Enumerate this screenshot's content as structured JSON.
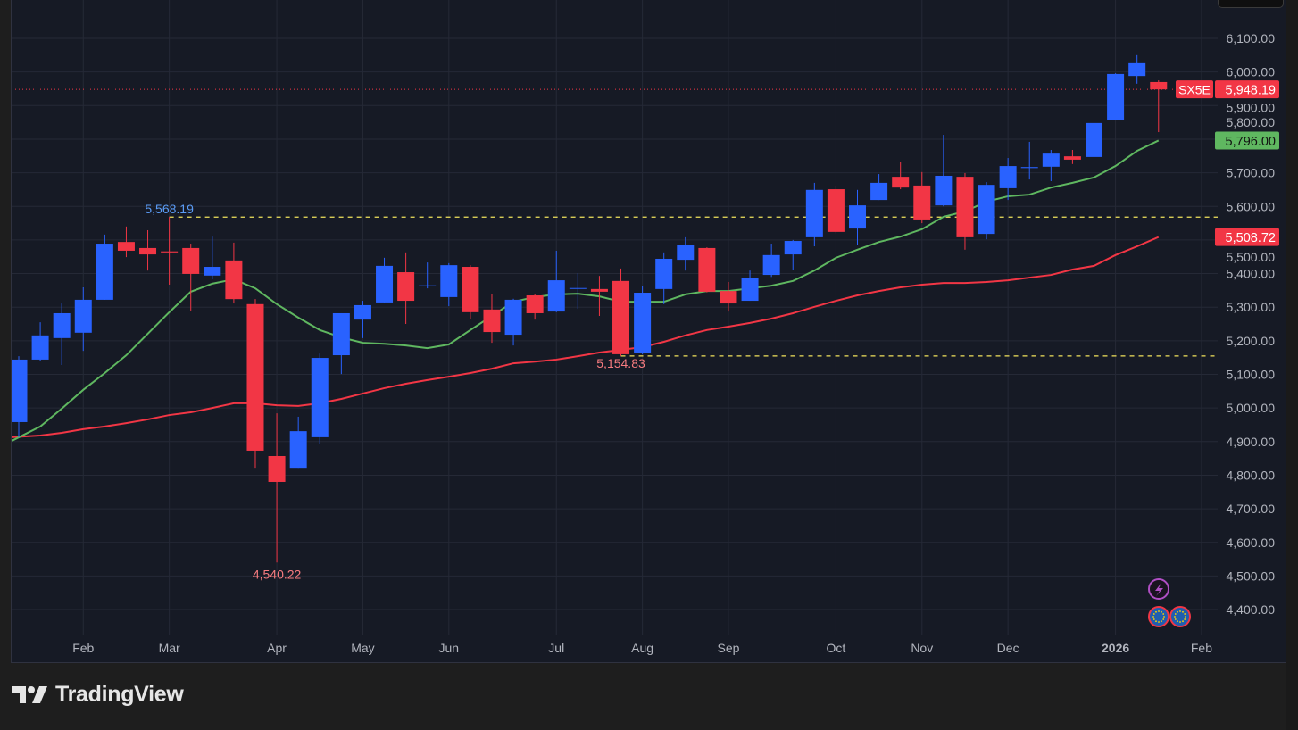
{
  "brand": {
    "name": "TradingView"
  },
  "symbol": "SX5E",
  "colors": {
    "up": "#2962ff",
    "down": "#f23645",
    "ma_fast": "#5fb760",
    "ma_slow": "#f23645",
    "level_line": "#f2e35c",
    "bg": "#161a25",
    "grid": "#252936"
  },
  "icons": [
    "lightning-event-icon",
    "eu-flag-event-icon",
    "eu-flag-event-icon"
  ],
  "chart_data": {
    "type": "candlestick",
    "interval": "weekly",
    "ylim": [
      4300,
      6150
    ],
    "y_ticks": [
      "4,400.00",
      "4,500.00",
      "4,600.00",
      "4,700.00",
      "4,800.00",
      "4,900.00",
      "5,000.00",
      "5,100.00",
      "5,200.00",
      "5,300.00",
      "5,400.00",
      "5,500.00",
      "5,600.00",
      "5,700.00",
      "5,800.00",
      "5,900.00",
      "6,000.00",
      "6,100.00"
    ],
    "y_tick_values": [
      4400,
      4500,
      4600,
      4700,
      4800,
      4900,
      5000,
      5100,
      5200,
      5300,
      5400,
      5500,
      5600,
      5700,
      5800,
      5900,
      6000,
      6100
    ],
    "x_ticks": [
      {
        "label": "Feb",
        "index": 3
      },
      {
        "label": "Mar",
        "index": 7
      },
      {
        "label": "Apr",
        "index": 12
      },
      {
        "label": "May",
        "index": 16
      },
      {
        "label": "Jun",
        "index": 20
      },
      {
        "label": "Jul",
        "index": 25
      },
      {
        "label": "Aug",
        "index": 29
      },
      {
        "label": "Sep",
        "index": 33
      },
      {
        "label": "Oct",
        "index": 38
      },
      {
        "label": "Nov",
        "index": 42
      },
      {
        "label": "Dec",
        "index": 46
      },
      {
        "label": "2026",
        "index": 51,
        "bold": true
      },
      {
        "label": "Feb",
        "index": 55
      }
    ],
    "ohlc": [
      [
        4958,
        5154,
        4913,
        5144
      ],
      [
        5144,
        5255,
        5139,
        5216
      ],
      [
        5208,
        5311,
        5128,
        5282
      ],
      [
        5224,
        5359,
        5170,
        5322
      ],
      [
        5322,
        5516,
        5322,
        5489
      ],
      [
        5494,
        5540,
        5449,
        5468
      ],
      [
        5476,
        5529,
        5409,
        5457
      ],
      [
        5466,
        5568.19,
        5367,
        5463
      ],
      [
        5476,
        5489,
        5290,
        5399
      ],
      [
        5394,
        5510,
        5383,
        5420
      ],
      [
        5439,
        5492,
        5311,
        5324
      ],
      [
        5309,
        5324,
        4822,
        4873
      ],
      [
        4857,
        4984,
        4540.22,
        4780
      ],
      [
        4822,
        4974,
        4822,
        4931
      ],
      [
        4913,
        5162,
        4892,
        5149
      ],
      [
        5157,
        5282,
        5101,
        5282
      ],
      [
        5263,
        5319,
        5208,
        5306
      ],
      [
        5314,
        5447,
        5314,
        5423
      ],
      [
        5404,
        5463,
        5250,
        5319
      ],
      [
        5362,
        5433,
        5356,
        5365
      ],
      [
        5330,
        5431,
        5303,
        5425
      ],
      [
        5420,
        5425,
        5266,
        5285
      ],
      [
        5293,
        5340,
        5194,
        5226
      ],
      [
        5218,
        5325,
        5186,
        5322
      ],
      [
        5335,
        5340,
        5263,
        5282
      ],
      [
        5287,
        5468,
        5285,
        5380
      ],
      [
        5355,
        5401,
        5295,
        5357
      ],
      [
        5354,
        5393,
        5274,
        5346
      ],
      [
        5378,
        5415,
        5154.83,
        5160
      ],
      [
        5165,
        5364,
        5160,
        5343
      ],
      [
        5354,
        5463,
        5309,
        5444
      ],
      [
        5441,
        5508,
        5409,
        5484
      ],
      [
        5476,
        5478,
        5344,
        5346
      ],
      [
        5348,
        5375,
        5287,
        5311
      ],
      [
        5319,
        5409,
        5319,
        5388
      ],
      [
        5396,
        5489,
        5390,
        5455
      ],
      [
        5457,
        5500,
        5412,
        5497
      ],
      [
        5508,
        5670,
        5481,
        5649
      ],
      [
        5651,
        5662,
        5520,
        5524
      ],
      [
        5534,
        5649,
        5484,
        5603
      ],
      [
        5619,
        5696,
        5619,
        5670
      ],
      [
        5688,
        5731,
        5651,
        5656
      ],
      [
        5662,
        5702,
        5550,
        5561
      ],
      [
        5603,
        5813,
        5600,
        5691
      ],
      [
        5688,
        5699,
        5471,
        5508
      ],
      [
        5518,
        5672,
        5502,
        5664
      ],
      [
        5654,
        5744,
        5619,
        5720
      ],
      [
        5714,
        5792,
        5680,
        5717
      ],
      [
        5718,
        5768,
        5675,
        5757
      ],
      [
        5749,
        5768,
        5726,
        5739
      ],
      [
        5747,
        5861,
        5731,
        5848
      ],
      [
        5856,
        5996,
        5856,
        5994
      ],
      [
        5988,
        6050,
        5965,
        6026
      ],
      [
        5970,
        5975,
        5821,
        5948.19
      ]
    ],
    "ma_fast": [
      4902,
      4945,
      4998,
      5054,
      5104,
      5157,
      5221,
      5285,
      5346,
      5370,
      5383,
      5356,
      5309,
      5269,
      5232,
      5210,
      5194,
      5191,
      5186,
      5178,
      5189,
      5232,
      5274,
      5316,
      5330,
      5338,
      5340,
      5332,
      5316,
      5316,
      5316,
      5338,
      5348,
      5348,
      5356,
      5364,
      5378,
      5409,
      5447,
      5471,
      5494,
      5510,
      5532,
      5569,
      5585,
      5614,
      5630,
      5635,
      5656,
      5670,
      5686,
      5720,
      5765,
      5796
    ],
    "ma_slow": [
      4913,
      4918,
      4926,
      4937,
      4945,
      4955,
      4966,
      4979,
      4987,
      5000,
      5014,
      5014,
      5008,
      5006,
      5014,
      5027,
      5043,
      5059,
      5072,
      5083,
      5093,
      5104,
      5117,
      5133,
      5138,
      5144,
      5154,
      5165,
      5173,
      5181,
      5197,
      5216,
      5232,
      5242,
      5253,
      5266,
      5282,
      5301,
      5319,
      5335,
      5348,
      5359,
      5367,
      5372,
      5372,
      5375,
      5380,
      5388,
      5396,
      5412,
      5423,
      5455,
      5481,
      5508.72
    ],
    "labels": {
      "last_price": "5,948.19",
      "last_price_value": 5948.19,
      "ma_fast_label": "5,796.00",
      "ma_slow_label": "5,508.72",
      "high_label": "5,568.19",
      "high_value": 5568.19,
      "high_index": 7,
      "low_label": "4,540.22",
      "low_value": 4540.22,
      "low_index": 12,
      "swing_low_label": "5,154.83",
      "swing_low_value": 5154.83,
      "swing_low_index": 28
    }
  }
}
